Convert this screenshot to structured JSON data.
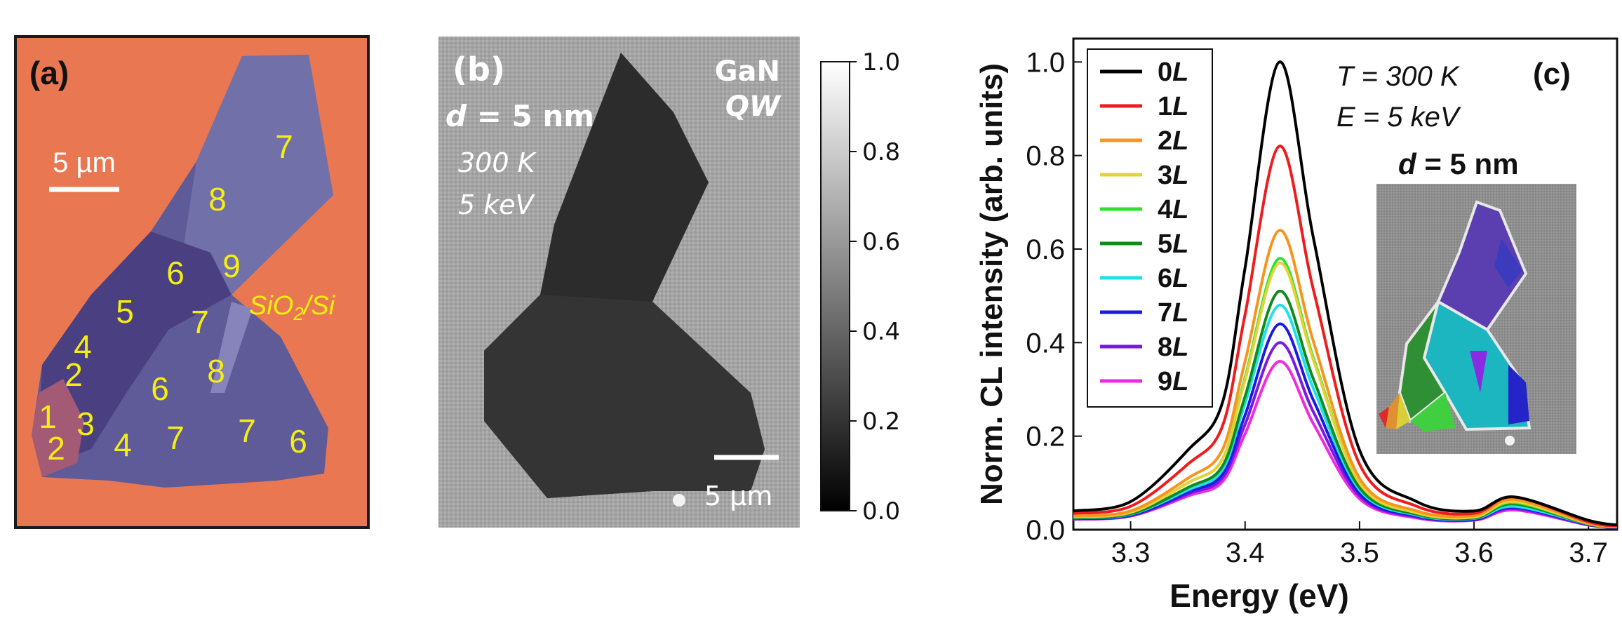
{
  "panel_a": {
    "label": "(a)",
    "scale_bar_label": "5 µm",
    "substrate_main": "SiO",
    "substrate_sub": "2",
    "substrate_tail": "/Si",
    "layer_numbers": [
      "7",
      "8",
      "9",
      "6",
      "5",
      "7",
      "4",
      "2",
      "6",
      "8",
      "1",
      "3",
      "2",
      "4",
      "7",
      "7",
      "6"
    ]
  },
  "panel_b": {
    "label": "(b)",
    "material_line1": "GaN",
    "material_line2": "QW",
    "thickness_var": "d",
    "thickness_val": " = 5 nm",
    "temperature": "300 K",
    "energy": "5 keV",
    "scale_bar_label": "5 µm",
    "colorbar_ticks": [
      "1.0",
      "0.8",
      "0.6",
      "0.4",
      "0.2",
      "0.0"
    ],
    "colorbar_range": [
      0,
      1
    ]
  },
  "chart_data": {
    "type": "line",
    "label": "(c)",
    "xlabel": "Energy (eV)",
    "ylabel": "Norm. CL intensity (arb. units)",
    "xlim": [
      3.25,
      3.725
    ],
    "ylim": [
      0,
      1.05
    ],
    "xticks": [
      "3.3",
      "3.4",
      "3.5",
      "3.6",
      "3.7"
    ],
    "yticks": [
      "0.0",
      "0.2",
      "0.4",
      "0.6",
      "0.8",
      "1.0"
    ],
    "annotation_T_var": "T",
    "annotation_T_val": " = 300 K",
    "annotation_E_var": "E",
    "annotation_E_val": " = 5 keV",
    "inset_d_var": "d",
    "inset_d_val": " = 5 nm",
    "legend_position": "top-left",
    "peak_energy_eV": 3.43,
    "series": [
      {
        "name_num": "0",
        "name_unit": "L",
        "color": "#000000",
        "peak": 1.0,
        "x": [
          3.25,
          3.3,
          3.35,
          3.38,
          3.4,
          3.43,
          3.46,
          3.5,
          3.55,
          3.6,
          3.635,
          3.7,
          3.725
        ],
        "y": [
          0.04,
          0.06,
          0.17,
          0.27,
          0.56,
          1.0,
          0.62,
          0.17,
          0.06,
          0.04,
          0.07,
          0.02,
          0.01
        ]
      },
      {
        "name_num": "1",
        "name_unit": "L",
        "color": "#ee1c1c",
        "peak": 0.82,
        "x": [
          3.25,
          3.3,
          3.35,
          3.38,
          3.4,
          3.43,
          3.46,
          3.5,
          3.55,
          3.6,
          3.635,
          3.7,
          3.725
        ],
        "y": [
          0.035,
          0.05,
          0.14,
          0.22,
          0.46,
          0.82,
          0.51,
          0.14,
          0.05,
          0.035,
          0.07,
          0.017,
          0.008
        ]
      },
      {
        "name_num": "2",
        "name_unit": "L",
        "color": "#f7941d",
        "peak": 0.64,
        "x": [
          3.25,
          3.3,
          3.35,
          3.38,
          3.4,
          3.43,
          3.46,
          3.5,
          3.55,
          3.6,
          3.635,
          3.7,
          3.725
        ],
        "y": [
          0.03,
          0.04,
          0.11,
          0.17,
          0.36,
          0.64,
          0.4,
          0.11,
          0.04,
          0.03,
          0.065,
          0.014,
          0.007
        ]
      },
      {
        "name_num": "3",
        "name_unit": "L",
        "color": "#e3d33a",
        "peak": 0.57,
        "x": [
          3.25,
          3.3,
          3.35,
          3.38,
          3.4,
          3.43,
          3.46,
          3.5,
          3.55,
          3.6,
          3.635,
          3.7,
          3.725
        ],
        "y": [
          0.028,
          0.037,
          0.1,
          0.15,
          0.32,
          0.57,
          0.36,
          0.1,
          0.036,
          0.027,
          0.06,
          0.013,
          0.006
        ]
      },
      {
        "name_num": "4",
        "name_unit": "L",
        "color": "#2fe02f",
        "peak": 0.58,
        "x": [
          3.25,
          3.3,
          3.35,
          3.38,
          3.4,
          3.43,
          3.46,
          3.5,
          3.55,
          3.6,
          3.635,
          3.7,
          3.725
        ],
        "y": [
          0.028,
          0.037,
          0.1,
          0.15,
          0.325,
          0.58,
          0.365,
          0.1,
          0.036,
          0.027,
          0.058,
          0.013,
          0.006
        ]
      },
      {
        "name_num": "5",
        "name_unit": "L",
        "color": "#138a1e",
        "peak": 0.51,
        "x": [
          3.25,
          3.3,
          3.35,
          3.38,
          3.4,
          3.43,
          3.46,
          3.5,
          3.55,
          3.6,
          3.635,
          3.7,
          3.725
        ],
        "y": [
          0.026,
          0.034,
          0.09,
          0.135,
          0.285,
          0.51,
          0.32,
          0.09,
          0.033,
          0.025,
          0.055,
          0.012,
          0.006
        ]
      },
      {
        "name_num": "6",
        "name_unit": "L",
        "color": "#1fe0e8",
        "peak": 0.48,
        "x": [
          3.25,
          3.3,
          3.35,
          3.38,
          3.4,
          3.43,
          3.46,
          3.5,
          3.55,
          3.6,
          3.635,
          3.7,
          3.725
        ],
        "y": [
          0.025,
          0.033,
          0.085,
          0.127,
          0.27,
          0.48,
          0.3,
          0.085,
          0.031,
          0.024,
          0.05,
          0.012,
          0.006
        ]
      },
      {
        "name_num": "7",
        "name_unit": "L",
        "color": "#1a1ae0",
        "peak": 0.44,
        "x": [
          3.25,
          3.3,
          3.35,
          3.38,
          3.4,
          3.43,
          3.46,
          3.5,
          3.55,
          3.6,
          3.635,
          3.7,
          3.725
        ],
        "y": [
          0.024,
          0.031,
          0.08,
          0.118,
          0.245,
          0.44,
          0.275,
          0.078,
          0.029,
          0.022,
          0.048,
          0.011,
          0.005
        ]
      },
      {
        "name_num": "8",
        "name_unit": "L",
        "color": "#7a1ae0",
        "peak": 0.4,
        "x": [
          3.25,
          3.3,
          3.35,
          3.38,
          3.4,
          3.43,
          3.46,
          3.5,
          3.55,
          3.6,
          3.635,
          3.7,
          3.725
        ],
        "y": [
          0.023,
          0.03,
          0.076,
          0.11,
          0.225,
          0.4,
          0.25,
          0.072,
          0.027,
          0.021,
          0.045,
          0.01,
          0.005
        ]
      },
      {
        "name_num": "9",
        "name_unit": "L",
        "color": "#f02ae0",
        "peak": 0.36,
        "x": [
          3.25,
          3.3,
          3.35,
          3.38,
          3.4,
          3.43,
          3.46,
          3.5,
          3.55,
          3.6,
          3.635,
          3.7,
          3.725
        ],
        "y": [
          0.022,
          0.029,
          0.072,
          0.102,
          0.205,
          0.36,
          0.225,
          0.066,
          0.025,
          0.02,
          0.042,
          0.01,
          0.005
        ]
      }
    ]
  }
}
